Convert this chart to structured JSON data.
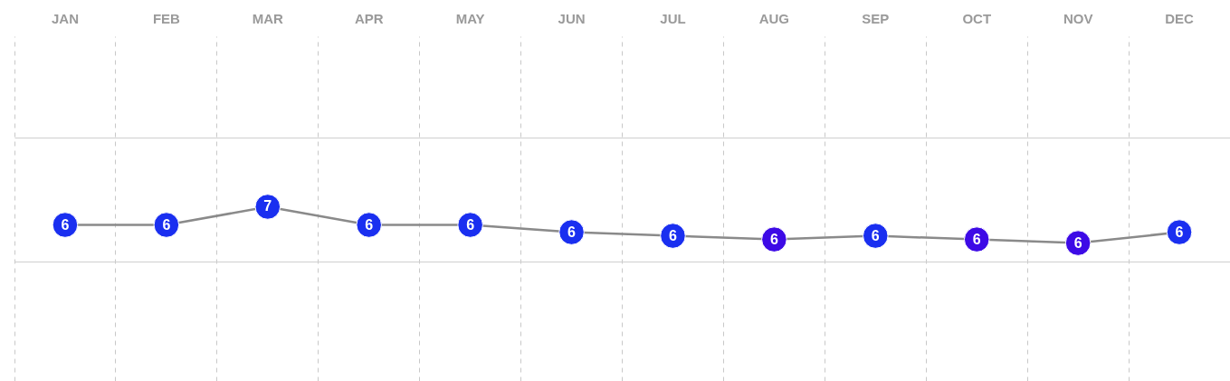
{
  "chart_data": {
    "type": "line",
    "categories": [
      "JAN",
      "FEB",
      "MAR",
      "APR",
      "MAY",
      "JUN",
      "JUL",
      "AUG",
      "SEP",
      "OCT",
      "NOV",
      "DEC"
    ],
    "series": [
      {
        "color": "#8a8a8a",
        "values": [
          6.1,
          6.1,
          6.6,
          6.1,
          6.1,
          5.9,
          5.8,
          5.7,
          5.8,
          5.7,
          5.6,
          5.9
        ],
        "colors": [
          "#1a2ff0",
          "#1a2ff0",
          "#1a2ff0",
          "#1a2ff0",
          "#1a2ff0",
          "#1a2ff0",
          "#1a2ff0",
          "#3d0ae6",
          "#1a2ff0",
          "#3d0ae6",
          "#3d0ae6",
          "#1a2ff0"
        ],
        "value_labels": [
          "6",
          "6",
          "7",
          "6",
          "6",
          "6",
          "6",
          "6",
          "6",
          "6",
          "6",
          "6"
        ]
      }
    ],
    "ylim": [
      1.8,
      11.3
    ],
    "yticks": [
      {
        "value": 5.1,
        "label": null
      },
      {
        "value": 8.5,
        "label": null
      }
    ],
    "marker": "circle",
    "grid": true,
    "tick_labels": "x"
  }
}
